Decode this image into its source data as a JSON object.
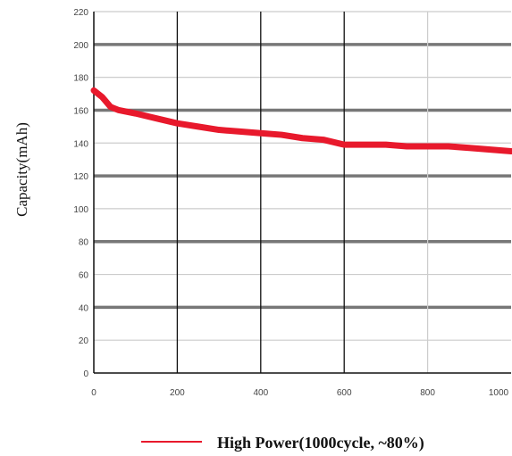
{
  "chart_data": {
    "type": "line",
    "title": "",
    "xlabel": "",
    "ylabel": "Capacity(mAh)",
    "xlim": [
      0,
      1000
    ],
    "ylim": [
      0,
      220
    ],
    "x_ticks": [
      0,
      200,
      400,
      600,
      800,
      1000
    ],
    "y_ticks": [
      0,
      20,
      40,
      60,
      80,
      100,
      120,
      140,
      160,
      180,
      200,
      220
    ],
    "x_tick_labels": [
      "0",
      "200",
      "400",
      "600",
      "800",
      "1000"
    ],
    "y_tick_labels": [
      "0",
      "20",
      "40",
      "60",
      "80",
      "100",
      "120",
      "140",
      "160",
      "180",
      "200",
      "220"
    ],
    "grid": true,
    "legend_position": "bottom",
    "series": [
      {
        "name": "High Power(1000cycle, ~80%)",
        "color": "#e8192c",
        "x": [
          0,
          20,
          40,
          60,
          100,
          150,
          200,
          250,
          300,
          350,
          400,
          450,
          500,
          550,
          600,
          650,
          700,
          750,
          800,
          850,
          900,
          950,
          1000
        ],
        "y": [
          172,
          168,
          162,
          160,
          158,
          155,
          152,
          150,
          148,
          147,
          146,
          145,
          143,
          142,
          139,
          139,
          139,
          138,
          138,
          138,
          137,
          136,
          135
        ]
      }
    ]
  },
  "colors": {
    "major_grid": "#777777",
    "minor_grid": "#cccccc",
    "vertical_grid": "#111111",
    "axis": "#111111"
  }
}
